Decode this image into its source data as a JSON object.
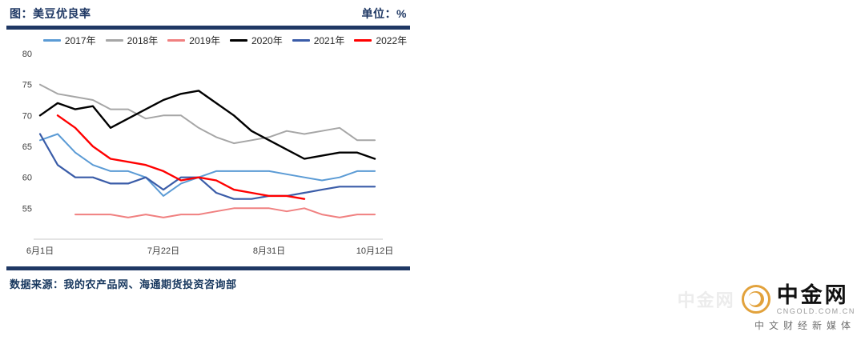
{
  "header": {
    "title": "图：美豆优良率",
    "unit_label": "单位：%"
  },
  "footer": {
    "source": "数据来源：我的农产品网、海通期货投资咨询部"
  },
  "logo": {
    "brand": "中金网",
    "domain": "CNGOLD.COM.CN",
    "tagline": "中文财经新媒体",
    "watermark": "中金网"
  },
  "colors": {
    "accent_navy": "#1F3864",
    "seal_gold": "#E2A23C"
  },
  "chart_data": {
    "type": "line",
    "title": "美豆优良率",
    "unit": "%",
    "x_count": 20,
    "x_ticks": [
      {
        "index": 0,
        "label": "6月1日"
      },
      {
        "index": 7,
        "label": "7月22日"
      },
      {
        "index": 13,
        "label": "8月31日"
      },
      {
        "index": 19,
        "label": "10月12日"
      }
    ],
    "ylim": [
      50,
      80
    ],
    "y_ticks": [
      55,
      60,
      65,
      70,
      75,
      80
    ],
    "grid": false,
    "legend_position": "top",
    "series": [
      {
        "name": "2017年",
        "color": "#5B9BD5",
        "width": 2,
        "values": [
          66,
          67,
          64,
          62,
          61,
          61,
          60,
          57,
          59,
          60,
          61,
          61,
          61,
          61,
          60.5,
          60,
          59.5,
          60,
          61,
          61
        ]
      },
      {
        "name": "2018年",
        "color": "#A6A6A6",
        "width": 2,
        "values": [
          75,
          73.5,
          73,
          72.5,
          71,
          71,
          69.5,
          70,
          70,
          68,
          66.5,
          65.5,
          66,
          66.5,
          67.5,
          67,
          67.5,
          68,
          66,
          66
        ]
      },
      {
        "name": "2019年",
        "color": "#F08080",
        "width": 2,
        "values": [
          null,
          null,
          54,
          54,
          54,
          53.5,
          54,
          53.5,
          54,
          54,
          54.5,
          55,
          55,
          55,
          54.5,
          55,
          54,
          53.5,
          54,
          54
        ]
      },
      {
        "name": "2020年",
        "color": "#000000",
        "width": 2.4,
        "values": [
          70,
          72,
          71,
          71.5,
          68,
          69.5,
          71,
          72.5,
          73.5,
          74,
          72,
          70,
          67.5,
          66,
          64.5,
          63,
          63.5,
          64,
          64,
          63
        ]
      },
      {
        "name": "2021年",
        "color": "#3A5CA8",
        "width": 2.2,
        "values": [
          67,
          62,
          60,
          60,
          59,
          59,
          60,
          58,
          60,
          60,
          57.5,
          56.5,
          56.5,
          57,
          57,
          57.5,
          58,
          58.5,
          58.5,
          58.5
        ]
      },
      {
        "name": "2022年",
        "color": "#FF0000",
        "width": 2.4,
        "values": [
          null,
          70,
          68,
          65,
          63,
          62.5,
          62,
          61,
          59.5,
          60,
          59.5,
          58,
          57.5,
          57,
          57,
          56.5,
          null,
          null,
          null,
          null
        ]
      }
    ]
  }
}
